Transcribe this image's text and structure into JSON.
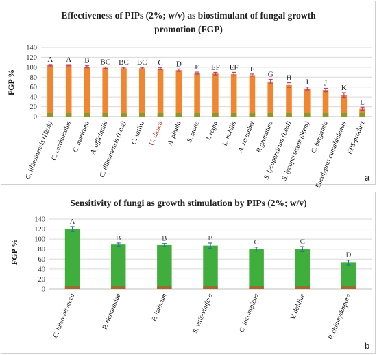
{
  "chart_data": [
    {
      "type": "bar",
      "panel_label": "a",
      "title_line1": "Effectiveness of PIPs (2%; w/v) as biostimulant of fungal growth",
      "title_line2": "promotion (FGP)",
      "ylabel": "FGP %",
      "ylim": [
        0,
        140
      ],
      "yticks": [
        "0",
        "20",
        "40",
        "60",
        "80",
        "100",
        "120",
        "140"
      ],
      "grid": true,
      "categories": [
        "C. illinoinensis (Husk)",
        "C. cardunculus",
        "C. maritima",
        "A. officinalis",
        "C. illinoinensis (Leaf)",
        "C. sativa",
        "U. dioica",
        "A. pinula",
        "S. molle",
        "J. regia",
        "L. nobilis",
        "A. zerumbet",
        "P. granatum",
        "S. lycopersicum (Leaf)",
        "S. lycopersicum (Stem)",
        "C. bergamia",
        "Eucalyptus camaldulensis",
        "EPS-product"
      ],
      "values": [
        104,
        104,
        101,
        99,
        98,
        98,
        97,
        94,
        88,
        87,
        86,
        84,
        71,
        64,
        57,
        54,
        44,
        16
      ],
      "errors": [
        1.5,
        1.2,
        2,
        1.5,
        1.5,
        1.5,
        1.8,
        2.5,
        2,
        2.5,
        3.5,
        2,
        4.5,
        4.5,
        3,
        3.5,
        4.5,
        3
      ],
      "letters": [
        "A",
        "A",
        "B",
        "BC",
        "BC",
        "BC",
        "C",
        "D",
        "E",
        "EF",
        "EF",
        "F",
        "G",
        "H",
        "I",
        "J",
        "K",
        "L"
      ],
      "highlight_categories": [
        "U. dioica"
      ],
      "colors": {
        "bar": "#f0862f",
        "base": "#8a9a2a",
        "error": "#b4407a",
        "highlight_label": "#c0392b"
      }
    },
    {
      "type": "bar",
      "panel_label": "b",
      "title": "Sensitivity of fungi as growth stimulation by PIPs (2%; w/v)",
      "ylabel": "FGP %",
      "ylim": [
        0,
        140
      ],
      "yticks": [
        "0",
        "20",
        "40",
        "60",
        "80",
        "100",
        "120",
        "140"
      ],
      "grid": true,
      "categories": [
        "C. luteo-olivacea",
        "P. richardsiae",
        "P. italicum",
        "S. vitis-vinifera",
        "C. inconspicua",
        "V. dahliae",
        "P. chlamydospora"
      ],
      "values": [
        120,
        89,
        88,
        87,
        80,
        80,
        53
      ],
      "errors": [
        5,
        3,
        3,
        5,
        4,
        5,
        5
      ],
      "letters": [
        "A",
        "B",
        "B",
        "B",
        "C",
        "C",
        "D"
      ],
      "colors": {
        "bar": "#3fae3c",
        "base": "#9e6b2e",
        "error": "#2a6f9e",
        "letter": "#3a5f8a"
      }
    }
  ]
}
